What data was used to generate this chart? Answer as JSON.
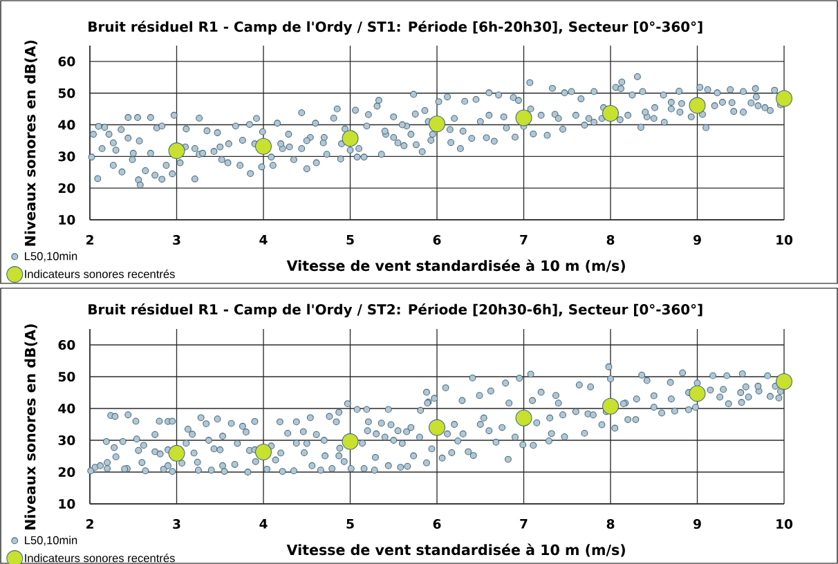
{
  "chart_data": [
    {
      "type": "scatter",
      "title": "Bruit résiduel R1 - Camp de l'Ordy / ST1: Période [6h-20h30], Secteur [0°-360°]",
      "xlabel": "Vitesse de vent standardisée à 10 m (m/s)",
      "ylabel": "Niveaux sonores en dB(A)",
      "xlim": [
        2,
        10
      ],
      "ylim": [
        10,
        65
      ],
      "xticks": [
        2,
        3,
        4,
        5,
        6,
        7,
        8,
        9,
        10
      ],
      "yticks": [
        10,
        20,
        30,
        40,
        50,
        60
      ],
      "grid": true,
      "legend": "bottom left",
      "marker": "circle",
      "series": [
        {
          "name": "L50,10min",
          "color": "#b3c7d3",
          "x": [
            2.02,
            2.04,
            2.09,
            2.1,
            2.14,
            2.17,
            2.22,
            2.27,
            2.27,
            2.36,
            2.37,
            2.44,
            2.44,
            2.49,
            2.55,
            2.56,
            2.58,
            2.57,
            2.7,
            2.64,
            2.75,
            2.77,
            2.83,
            2.83,
            2.88,
            2.95,
            2.97,
            3.04,
            3.11,
            3.21,
            3.26,
            3.21,
            3.26,
            3.35,
            3.43,
            3.47,
            3.52,
            3.59,
            3.68,
            3.73,
            3.76,
            3.85,
            3.84,
            3.92,
            3.98,
            3.99,
            4.09,
            4.11,
            4.16,
            4.22,
            4.29,
            4.35,
            4.44,
            4.44,
            4.5,
            4.54,
            4.6,
            4.61,
            4.69,
            4.73,
            4.81,
            4.85,
            4.89,
            4.94,
            5.06,
            5.08,
            5.1,
            5.19,
            5.21,
            5.16,
            5.31,
            5.33,
            5.36,
            5.41,
            5.5,
            5.55,
            5.62,
            5.65,
            5.73,
            5.75,
            5.76,
            5.83,
            5.86,
            5.93,
            6.02,
            6.12,
            6.16,
            6.27,
            6.32,
            6.4,
            6.45,
            6.6,
            6.57,
            6.66,
            6.71,
            6.77,
            6.88,
            6.9,
            6.94,
            7.07,
            7.11,
            7.08,
            7.27,
            7.33,
            7.36,
            7.47,
            7.45,
            7.55,
            7.66,
            7.7,
            7.81,
            7.81,
            7.92,
            8.06,
            8.13,
            8.12,
            8.11,
            8.25,
            8.31,
            8.35,
            8.37,
            8.42,
            8.51,
            8.61,
            8.62,
            8.7,
            8.79,
            8.82,
            8.93,
            9.03,
            9.1,
            9.06,
            9.12,
            9.23,
            9.29,
            9.38,
            9.42,
            9.53,
            9.53,
            9.62,
            9.67,
            9.68,
            9.78,
            9.84,
            9.89,
            9.96,
            5.4,
            5.5,
            5.6,
            5.7,
            5.9,
            5.95,
            6.15,
            6.2,
            6.3,
            6.5,
            6.6,
            6.8,
            7.0,
            7.2,
            7.4,
            7.6,
            7.75,
            7.9,
            8.2,
            8.4,
            8.5,
            8.7,
            8.8,
            9.2,
            9.4,
            9.7,
            3.5,
            3.6,
            3.9,
            4.2,
            4.3,
            4.5,
            4.7,
            4.9,
            5.0,
            2.5,
            2.3,
            2.7,
            3.1,
            3.3
          ],
          "values": [
            29.8,
            37,
            23,
            39.5,
            32.5,
            39.2,
            37,
            34.3,
            27.2,
            38.5,
            25.1,
            42.3,
            35.8,
            29,
            42.3,
            22.6,
            21,
            34.9,
            42.3,
            25.5,
            24.1,
            39,
            39.6,
            22.8,
            27.2,
            24.5,
            43,
            28,
            38.7,
            22.9,
            42.1,
            32.5,
            30.7,
            38.1,
            31.6,
            37.5,
            29,
            28,
            39.6,
            27.2,
            35.1,
            24.6,
            40.1,
            42,
            26.7,
            37.8,
            29.8,
            27.2,
            40.5,
            32.5,
            37,
            29,
            43.8,
            32.5,
            26.1,
            36,
            40.5,
            28,
            34.3,
            30.7,
            42.1,
            45,
            29.2,
            38.7,
            44.6,
            29.8,
            32.5,
            39.6,
            43.2,
            29.8,
            45.9,
            47.7,
            30.7,
            37,
            42.5,
            34.3,
            33.4,
            39.6,
            49.6,
            43.4,
            33.7,
            31.5,
            44.5,
            35.1,
            47.3,
            48.8,
            34.4,
            32.5,
            47.4,
            35.7,
            48,
            50.1,
            35.9,
            34.8,
            49.4,
            42.5,
            48.6,
            36.1,
            47.7,
            53.3,
            37.1,
            45,
            36.7,
            51.5,
            43.3,
            50.1,
            38.6,
            50.5,
            48.2,
            39.9,
            50.5,
            40.8,
            45.4,
            51.8,
            53.5,
            51.4,
            41.6,
            49.4,
            55.2,
            39.2,
            50.5,
            42.5,
            45.4,
            49.4,
            40.8,
            47.1,
            50.6,
            46.7,
            42.5,
            51.8,
            39.1,
            43.3,
            51.1,
            50.1,
            47.1,
            51.1,
            44.2,
            50.5,
            44,
            46.9,
            51.4,
            48.8,
            45.4,
            44.5,
            50.9,
            46.3,
            38,
            36,
            40,
            37,
            41,
            37,
            38.5,
            42,
            38,
            41,
            43,
            39,
            39.5,
            43,
            42,
            43,
            42,
            42,
            43,
            44,
            42,
            45,
            44,
            46,
            47,
            46,
            33,
            34,
            34,
            34,
            33,
            35,
            36,
            34,
            32,
            31,
            32,
            31,
            33,
            31
          ]
        },
        {
          "name": "Indicateurs sonores recentrés",
          "color": "#c8e02e",
          "x": [
            3,
            4,
            5,
            6,
            7,
            8,
            9,
            10
          ],
          "values": [
            31.8,
            33.2,
            35.7,
            40.3,
            42.2,
            43.6,
            46.1,
            48.3
          ]
        }
      ]
    },
    {
      "type": "scatter",
      "title": "Bruit résiduel R1 - Camp de l'Ordy / ST2: Période [20h30-6h], Secteur [0°-360°]",
      "xlabel": "Vitesse de vent standardisée à 10 m (m/s)",
      "ylabel": "Niveaux sonores en dB(A)",
      "xlim": [
        2,
        10
      ],
      "ylim": [
        10,
        65
      ],
      "xticks": [
        2,
        3,
        4,
        5,
        6,
        7,
        8,
        9,
        10
      ],
      "yticks": [
        10,
        20,
        30,
        40,
        50,
        60
      ],
      "grid": true,
      "legend": "bottom left",
      "marker": "circle",
      "series": [
        {
          "name": "L50,10min",
          "color": "#b3c7d3",
          "x": [
            2.01,
            2.06,
            2.12,
            2.19,
            2.2,
            2.24,
            2.29,
            2.28,
            2.3,
            2.38,
            2.44,
            2.43,
            2.53,
            2.54,
            2.56,
            2.62,
            2.64,
            2.75,
            2.75,
            2.8,
            2.81,
            2.85,
            2.9,
            2.95,
            2.95,
            3.06,
            3.11,
            3.13,
            3.18,
            3.24,
            3.25,
            3.28,
            3.34,
            3.37,
            3.4,
            3.43,
            3.47,
            3.53,
            3.55,
            3.53,
            3.63,
            3.67,
            3.76,
            3.82,
            3.8,
            3.84,
            3.9,
            3.91,
            4.04,
            4.09,
            4.14,
            4.19,
            4.22,
            4.28,
            4.35,
            4.38,
            4.38,
            4.46,
            4.47,
            4.54,
            4.56,
            4.66,
            4.61,
            4.71,
            4.76,
            4.79,
            4.84,
            4.87,
            4.87,
            4.93,
            4.97,
            5.01,
            5.08,
            5.14,
            5.16,
            5.19,
            5.21,
            5.28,
            5.29,
            5.36,
            5.44,
            5.44,
            5.47,
            5.58,
            5.65,
            5.66,
            5.73,
            5.81,
            5.88,
            5.9,
            5.94,
            5.89,
            5.88,
            5.97,
            6.06,
            6.1,
            6.17,
            6.29,
            6.24,
            6.41,
            6.36,
            6.42,
            6.49,
            6.54,
            6.62,
            6.68,
            6.79,
            6.82,
            6.83,
            6.95,
            6.99,
            7.08,
            7.1,
            7.11,
            7.2,
            7.29,
            7.32,
            7.37,
            7.4,
            7.47,
            7.64,
            7.7,
            7.77,
            7.74,
            7.9,
            7.98,
            8,
            8.05,
            8.17,
            8.2,
            8.29,
            8.36,
            8.42,
            8.5,
            8.59,
            8.69,
            8.74,
            8.83,
            8.9,
            9,
            8.98,
            9.18,
            9.26,
            9.34,
            9.36,
            9.51,
            9.52,
            9.56,
            9.59,
            9.71,
            9.81,
            9.84,
            9.94,
            9.96,
            6.12,
            6.2,
            6.3,
            6.5,
            6.6,
            6.75,
            6.9,
            7.15,
            7.3,
            7.45,
            7.6,
            7.8,
            7.95,
            8.15,
            8.3,
            8.5,
            8.7,
            8.9,
            9.15,
            9.3,
            9.5,
            9.7,
            9.9,
            5.4,
            5.5,
            5.55,
            5.6,
            5.7,
            5.8,
            5.3,
            5.2,
            4.88,
            4.7,
            4.5,
            4.2,
            3.9,
            3.7,
            3.5,
            3.2,
            2.9,
            2.6,
            2.4,
            2.2,
            2.9
          ],
          "values": [
            20.4,
            21.5,
            22,
            29.6,
            21.1,
            37.8,
            37.5,
            27.7,
            24.8,
            29.6,
            38,
            21.1,
            36,
            30.4,
            26.8,
            28.4,
            20.4,
            31.8,
            26.4,
            36,
            25.7,
            20.9,
            35.9,
            20.2,
            36,
            22.8,
            29.1,
            33.5,
            31.9,
            23.1,
            20.6,
            37.1,
            35.2,
            30,
            20.6,
            27.3,
            36.7,
            22,
            20.2,
            31.3,
            35.3,
            22.4,
            34.4,
            20,
            32.6,
            26.8,
            35.9,
            23.3,
            20.9,
            28.2,
            23.8,
            35.8,
            20.2,
            32.2,
            20.4,
            35.8,
            29.1,
            32.7,
            26.1,
            37.1,
            22,
            20.6,
            31.8,
            25.1,
            37.5,
            21.1,
            35.8,
            38.8,
            25.1,
            23.3,
            41.5,
            21.1,
            39.7,
            29.1,
            21.1,
            39.7,
            35.8,
            20.6,
            24.6,
            35.4,
            39.7,
            22,
            34.9,
            21.5,
            32.7,
            21.8,
            25.1,
            39.4,
            45.1,
            42,
            27.3,
            41.7,
            22.9,
            43.2,
            24.4,
            46.5,
            26.1,
            42.5,
            29.8,
            49.6,
            26.4,
            25.2,
            44.1,
            37,
            45.5,
            29.4,
            48,
            24,
            41.7,
            49.5,
            28.6,
            50.8,
            42.5,
            28.4,
            45.1,
            29.8,
            32.1,
            44.1,
            41.7,
            31.1,
            47.4,
            32.2,
            46.8,
            38.3,
            34.9,
            53.1,
            49.3,
            33.8,
            41.7,
            36.5,
            36.5,
            50.5,
            48.8,
            40.4,
            38.6,
            48.2,
            39.2,
            51.2,
            39.6,
            48,
            40.4,
            50.3,
            43.6,
            50.3,
            41.5,
            41.9,
            50.9,
            46.8,
            43.6,
            45.5,
            50.3,
            43.8,
            43.3,
            45.4,
            32,
            35,
            32,
            35,
            33,
            34,
            31,
            35.5,
            37,
            38,
            39,
            38,
            39,
            41.5,
            43,
            44,
            43,
            45,
            45.8,
            46,
            45,
            47,
            47,
            31,
            30,
            33,
            29,
            34,
            31,
            32,
            33,
            27.5,
            30,
            29,
            26,
            27,
            29,
            27,
            26,
            27,
            23,
            21,
            23,
            22
          ]
        },
        {
          "name": "Indicateurs sonores recentrés",
          "color": "#c8e02e",
          "x": [
            3,
            4,
            5,
            6,
            7,
            8,
            9,
            10
          ],
          "values": [
            25.9,
            26.3,
            29.6,
            34.0,
            37.0,
            40.7,
            44.7,
            48.5
          ]
        }
      ]
    }
  ]
}
